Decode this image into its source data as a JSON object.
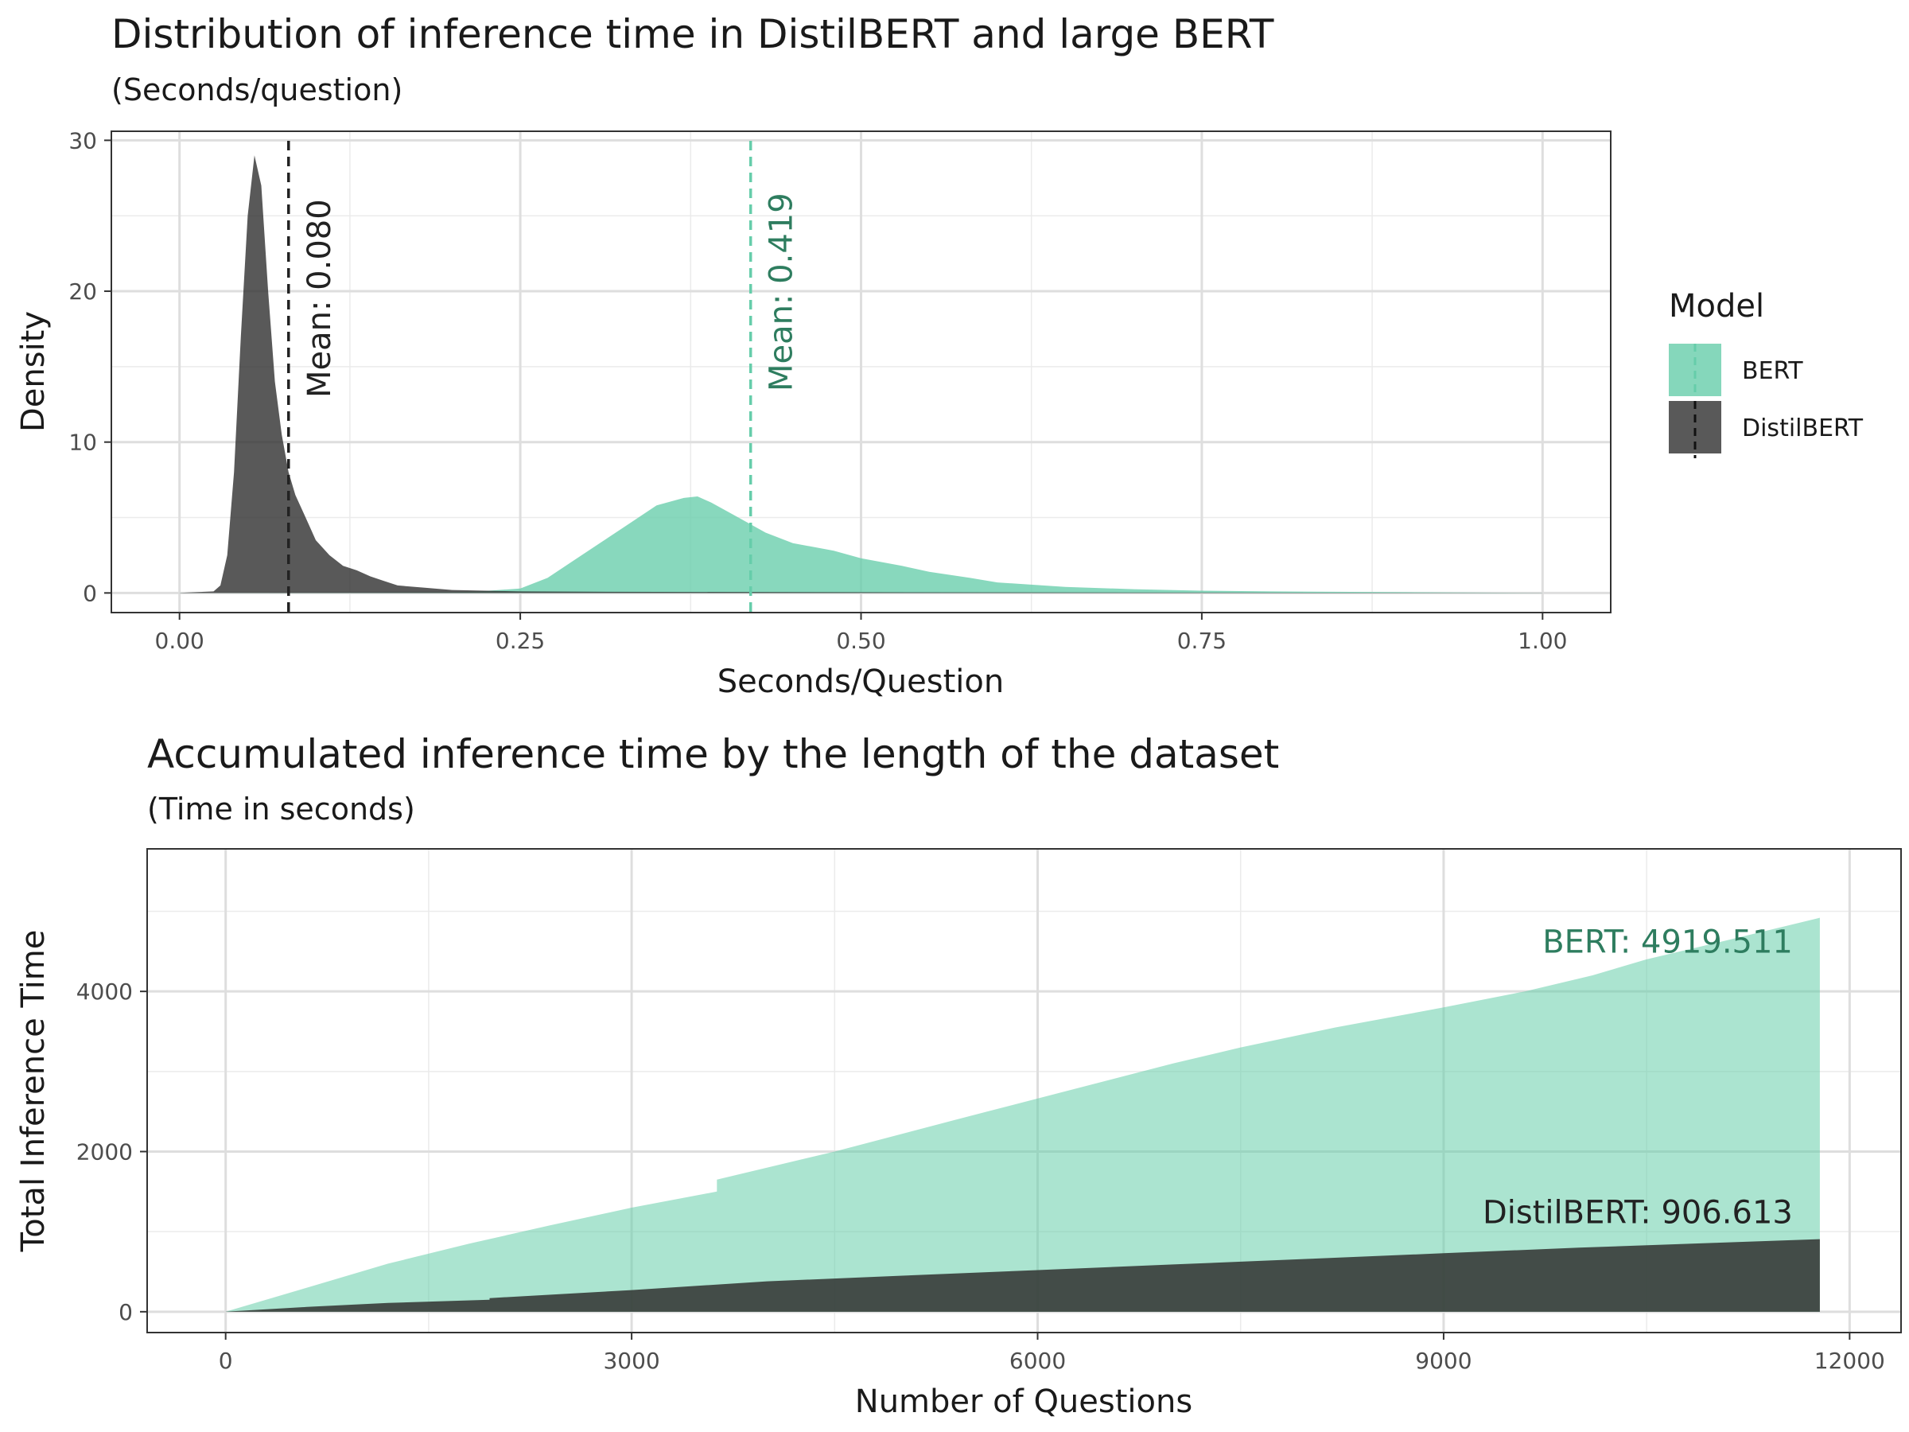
{
  "colors": {
    "bert": "#66CDAA",
    "distilbert": "#2F2F2F",
    "bert_text": "#2E7D5F",
    "distilbert_text": "#222222"
  },
  "chart_data": [
    {
      "type": "area",
      "title": "Distribution of inference time in DistilBERT and large BERT",
      "subtitle": "(Seconds/question)",
      "xlabel": "Seconds/Question",
      "ylabel": "Density",
      "xlim": [
        -0.05,
        1.05
      ],
      "ylim": [
        -1.3,
        30.6
      ],
      "x_ticks": [
        "0.00",
        "0.25",
        "0.50",
        "0.75",
        "1.00"
      ],
      "x_tick_values": [
        0.0,
        0.25,
        0.5,
        0.75,
        1.0
      ],
      "y_ticks": [
        "0",
        "10",
        "20",
        "30"
      ],
      "y_tick_values": [
        0,
        10,
        20,
        30
      ],
      "grid": true,
      "legend": {
        "title": "Model",
        "position": "right",
        "entries": [
          "BERT",
          "DistilBERT"
        ]
      },
      "series": [
        {
          "name": "BERT",
          "x": [
            0.0,
            0.2,
            0.22,
            0.25,
            0.27,
            0.29,
            0.31,
            0.33,
            0.35,
            0.37,
            0.38,
            0.39,
            0.41,
            0.43,
            0.45,
            0.48,
            0.5,
            0.53,
            0.55,
            0.58,
            0.6,
            0.65,
            0.7,
            0.75,
            0.8,
            0.9,
            1.0
          ],
          "y": [
            0.0,
            0.05,
            0.1,
            0.3,
            1.0,
            2.2,
            3.4,
            4.6,
            5.8,
            6.3,
            6.4,
            6.0,
            5.0,
            4.0,
            3.3,
            2.8,
            2.3,
            1.8,
            1.4,
            1.0,
            0.7,
            0.4,
            0.25,
            0.15,
            0.1,
            0.05,
            0.0
          ],
          "mean": 0.419,
          "annotation": "Mean: 0.419"
        },
        {
          "name": "DistilBERT",
          "x": [
            0.0,
            0.025,
            0.03,
            0.035,
            0.04,
            0.045,
            0.05,
            0.055,
            0.06,
            0.065,
            0.07,
            0.075,
            0.08,
            0.085,
            0.09,
            0.095,
            0.1,
            0.11,
            0.12,
            0.13,
            0.14,
            0.15,
            0.16,
            0.18,
            0.2,
            0.25,
            0.3,
            0.5,
            1.0
          ],
          "y": [
            0.0,
            0.1,
            0.5,
            2.5,
            8.0,
            17.0,
            25.0,
            29.0,
            27.0,
            20.0,
            14.0,
            10.5,
            8.0,
            6.5,
            5.5,
            4.5,
            3.5,
            2.5,
            1.8,
            1.5,
            1.1,
            0.8,
            0.5,
            0.35,
            0.2,
            0.1,
            0.08,
            0.05,
            0.0
          ],
          "mean": 0.08,
          "annotation": "Mean: 0.080"
        }
      ]
    },
    {
      "type": "area",
      "title": "Accumulated inference time by the length of the dataset",
      "subtitle": "(Time in seconds)",
      "xlabel": "Number of Questions",
      "ylabel": "Total Inference Time",
      "xlim": [
        -580,
        12380
      ],
      "ylim": [
        -260,
        5780
      ],
      "x_ticks": [
        "0",
        "3000",
        "6000",
        "9000",
        "12000"
      ],
      "x_tick_values": [
        0,
        3000,
        6000,
        9000,
        12000
      ],
      "y_ticks": [
        "0",
        "2000",
        "4000"
      ],
      "y_tick_values": [
        0,
        2000,
        4000
      ],
      "grid": true,
      "series": [
        {
          "name": "BERT",
          "x": [
            0,
            600,
            1200,
            1800,
            2400,
            3000,
            3630,
            3630,
            4500,
            5400,
            6200,
            7000,
            7500,
            8200,
            9000,
            9600,
            10100,
            10500,
            11000,
            11780
          ],
          "y": [
            0,
            300,
            600,
            850,
            1080,
            1300,
            1500,
            1650,
            2000,
            2400,
            2750,
            3100,
            3300,
            3550,
            3800,
            4000,
            4200,
            4400,
            4600,
            4919.511
          ],
          "annotation": "BERT: 4919.511"
        },
        {
          "name": "DistilBERT",
          "x": [
            0,
            600,
            1200,
            1950,
            1950,
            3000,
            4000,
            5000,
            6000,
            7000,
            8000,
            9000,
            10000,
            11000,
            11780
          ],
          "y": [
            0,
            60,
            110,
            150,
            170,
            270,
            380,
            450,
            520,
            590,
            660,
            730,
            800,
            860,
            906.613
          ],
          "annotation": "DistilBERT: 906.613"
        }
      ]
    }
  ]
}
